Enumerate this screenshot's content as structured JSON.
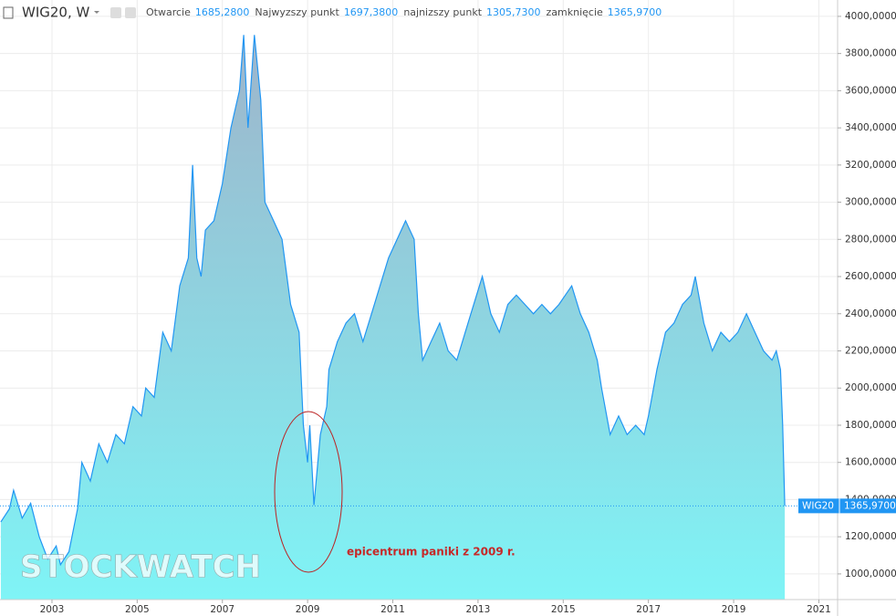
{
  "header": {
    "symbol": "WIG20, W",
    "ohlc": [
      {
        "label": "Otwarcie",
        "value": "1685,2800"
      },
      {
        "label": "Najwyzszy punkt",
        "value": "1697,3800"
      },
      {
        "label": "najnizszy punkt",
        "value": "1305,7300"
      },
      {
        "label": "zamknięcie",
        "value": "1365,9700"
      }
    ]
  },
  "watermark": "STOCKWATCH",
  "chart_data": {
    "type": "area",
    "annotation": "epicentrum paniki z 2009 r.",
    "xlim": [
      2001.78,
      2021.44
    ],
    "ylim": [
      862,
      4088
    ],
    "xticks": [
      2003,
      2005,
      2007,
      2009,
      2011,
      2013,
      2015,
      2017,
      2019,
      2021
    ],
    "yticks": [
      {
        "value": 1000,
        "label": "1000,0000"
      },
      {
        "value": 1200,
        "label": "1200,0000"
      },
      {
        "value": 1400,
        "label": "1400,0000"
      },
      {
        "value": 1600,
        "label": "1600,0000"
      },
      {
        "value": 1800,
        "label": "1800,0000"
      },
      {
        "value": 2000,
        "label": "2000,0000"
      },
      {
        "value": 2200,
        "label": "2200,0000"
      },
      {
        "value": 2400,
        "label": "2400,0000"
      },
      {
        "value": 2600,
        "label": "2600,0000"
      },
      {
        "value": 2800,
        "label": "2800,0000"
      },
      {
        "value": 3000,
        "label": "3000,0000"
      },
      {
        "value": 3200,
        "label": "3200,0000"
      },
      {
        "value": 3400,
        "label": "3400,0000"
      },
      {
        "value": 3600,
        "label": "3600,0000"
      },
      {
        "value": 3800,
        "label": "3800,0000"
      },
      {
        "value": 4000,
        "label": "4000,0000"
      }
    ],
    "grid": true,
    "last_price": {
      "value": 1365.97,
      "label": "1365,9700"
    },
    "series": [
      {
        "name": "WIG20",
        "color": "#2196f3",
        "x": [
          2001.8,
          2002.0,
          2002.1,
          2002.3,
          2002.5,
          2002.7,
          2002.9,
          2003.1,
          2003.2,
          2003.4,
          2003.6,
          2003.7,
          2003.9,
          2004.1,
          2004.3,
          2004.5,
          2004.7,
          2004.9,
          2005.1,
          2005.2,
          2005.4,
          2005.6,
          2005.8,
          2006.0,
          2006.2,
          2006.3,
          2006.4,
          2006.5,
          2006.6,
          2006.8,
          2007.0,
          2007.2,
          2007.4,
          2007.5,
          2007.6,
          2007.75,
          2007.9,
          2008.0,
          2008.2,
          2008.4,
          2008.6,
          2008.8,
          2008.9,
          2009.0,
          2009.05,
          2009.15,
          2009.3,
          2009.45,
          2009.5,
          2009.7,
          2009.9,
          2010.1,
          2010.3,
          2010.5,
          2010.7,
          2010.9,
          2011.1,
          2011.3,
          2011.5,
          2011.6,
          2011.7,
          2011.9,
          2012.1,
          2012.3,
          2012.5,
          2012.7,
          2012.9,
          2013.1,
          2013.3,
          2013.5,
          2013.7,
          2013.9,
          2014.1,
          2014.3,
          2014.5,
          2014.7,
          2014.9,
          2015.2,
          2015.4,
          2015.6,
          2015.8,
          2015.9,
          2016.1,
          2016.3,
          2016.5,
          2016.7,
          2016.9,
          2017.0,
          2017.2,
          2017.4,
          2017.6,
          2017.8,
          2018.0,
          2018.1,
          2018.3,
          2018.5,
          2018.7,
          2018.9,
          2019.1,
          2019.3,
          2019.5,
          2019.7,
          2019.9,
          2020.0,
          2020.1,
          2020.15,
          2020.2
        ],
        "values": [
          1280,
          1350,
          1450,
          1300,
          1380,
          1200,
          1080,
          1150,
          1050,
          1120,
          1350,
          1600,
          1500,
          1700,
          1600,
          1750,
          1700,
          1900,
          1850,
          2000,
          1950,
          2300,
          2200,
          2550,
          2700,
          3200,
          2700,
          2600,
          2850,
          2900,
          3100,
          3400,
          3600,
          3900,
          3400,
          3900,
          3550,
          3000,
          2900,
          2800,
          2450,
          2300,
          1800,
          1600,
          1800,
          1370,
          1750,
          1900,
          2100,
          2250,
          2350,
          2400,
          2250,
          2400,
          2550,
          2700,
          2800,
          2900,
          2800,
          2400,
          2150,
          2250,
          2350,
          2200,
          2150,
          2300,
          2450,
          2600,
          2400,
          2300,
          2450,
          2500,
          2450,
          2400,
          2450,
          2400,
          2450,
          2550,
          2400,
          2300,
          2150,
          2000,
          1750,
          1850,
          1750,
          1800,
          1750,
          1850,
          2100,
          2300,
          2350,
          2450,
          2500,
          2600,
          2350,
          2200,
          2300,
          2250,
          2300,
          2400,
          2300,
          2200,
          2150,
          2200,
          2100,
          1800,
          1365.97
        ]
      }
    ]
  }
}
